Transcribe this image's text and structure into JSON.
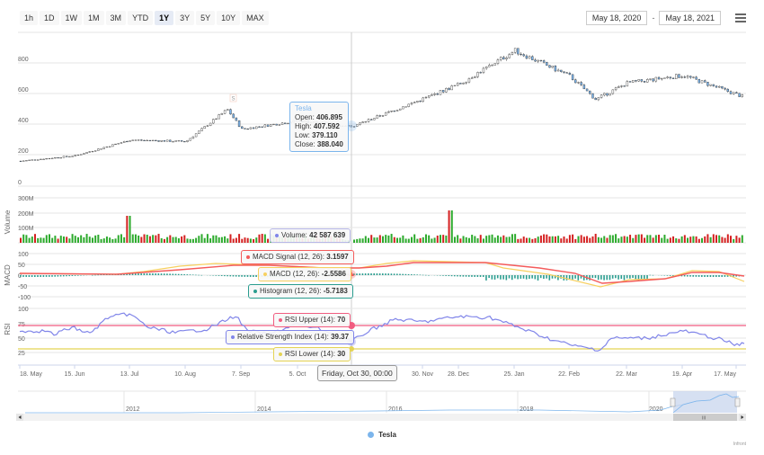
{
  "toolbar": {
    "range_buttons": [
      "1h",
      "1D",
      "1W",
      "1M",
      "3M",
      "YTD",
      "1Y",
      "3Y",
      "5Y",
      "10Y",
      "MAX"
    ],
    "active_range": "1Y",
    "date_from": "May 18, 2020",
    "date_separator": "-",
    "date_to": "May 18, 2021",
    "menu_icon": "hamburger-menu-icon"
  },
  "colors": {
    "up_volume": "#2caa2c",
    "down_volume": "#d42020",
    "candle_down_fill": "#7cb5ec",
    "macd_signal": "#f45b5b",
    "macd_line": "#f7d060",
    "histogram": "#2a9d8f",
    "rsi_line": "#8085e9",
    "rsi_upper": "#f15c80",
    "rsi_lower": "#e4d354",
    "navigator_fill": "#c8d5ee"
  },
  "chart_data": {
    "type": "candlestick",
    "title": "Tesla",
    "panes": [
      {
        "name": "price",
        "type": "candlestick",
        "y_ticks": [
          "0",
          "200",
          "400",
          "600",
          "800"
        ],
        "ylim": [
          0,
          900
        ],
        "approx_close_by_month": [
          {
            "date": "18. May",
            "close": 163
          },
          {
            "date": "15. Jun",
            "close": 198
          },
          {
            "date": "13. Jul",
            "close": 300
          },
          {
            "date": "10. Aug",
            "close": 290
          },
          {
            "date": "31. Aug",
            "close": 498
          },
          {
            "date": "7. Sep",
            "close": 370
          },
          {
            "date": "5. Oct",
            "close": 425
          },
          {
            "date": "30. Oct",
            "close": 388
          },
          {
            "date": "30. Nov",
            "close": 567
          },
          {
            "date": "28. Dec",
            "close": 663
          },
          {
            "date": "25. Jan",
            "close": 880
          },
          {
            "date": "22. Feb",
            "close": 714
          },
          {
            "date": "8. Mar",
            "close": 563
          },
          {
            "date": "22. Mar",
            "close": 670
          },
          {
            "date": "19. Apr",
            "close": 719
          },
          {
            "date": "17. May",
            "close": 576
          }
        ]
      },
      {
        "name": "volume",
        "title": "Volume",
        "type": "column",
        "y_ticks": [
          "0",
          "100M",
          "200M",
          "300M"
        ],
        "ylim": [
          0,
          300000000
        ]
      },
      {
        "name": "macd",
        "title": "MACD",
        "type": "line",
        "series": [
          "MACD Signal (12, 26)",
          "MACD (12, 26)",
          "Histogram (12, 26)"
        ],
        "y_ticks": [
          "-100",
          "-50",
          "0",
          "50",
          "100"
        ],
        "ylim": [
          -100,
          100
        ]
      },
      {
        "name": "rsi",
        "title": "RSI",
        "type": "line",
        "series": [
          "Relative Strength Index (14)",
          "RSI Upper (14)",
          "RSI Lower (14)"
        ],
        "y_ticks": [
          "25",
          "50",
          "75",
          "100"
        ],
        "ylim": [
          0,
          100
        ]
      }
    ],
    "x_ticks": [
      "18. May",
      "15. Jun",
      "13. Jul",
      "10. Aug",
      "7. Sep",
      "5. Oct",
      "30. Nov",
      "28. Dec",
      "25. Jan",
      "22. Feb",
      "22. Mar",
      "19. Apr",
      "17. May"
    ],
    "navigator_ticks": [
      "2012",
      "2014",
      "2016",
      "2018",
      "2020"
    ],
    "legend": [
      "Tesla"
    ],
    "hovered_point": {
      "date": "Friday, Oct 30, 00:00",
      "open": 406.895,
      "high": 407.592,
      "low": 379.11,
      "close": 388.04,
      "volume": "42 587 639",
      "macd_signal": 3.1597,
      "macd": -2.5586,
      "histogram": -5.7183,
      "rsi": 39.37,
      "rsi_upper": 70,
      "rsi_lower": 30
    }
  },
  "tooltips": {
    "price": {
      "series": "Tesla",
      "open_label": "Open: ",
      "open": "406.895",
      "high_label": "High: ",
      "high": "407.592",
      "low_label": "Low: ",
      "low": "379.110",
      "close_label": "Close: ",
      "close": "388.040"
    },
    "volume": {
      "label": "Volume: ",
      "value": "42 587 639"
    },
    "macd_signal": {
      "label": "MACD Signal (12, 26): ",
      "value": "3.1597"
    },
    "macd": {
      "label": "MACD (12, 26): ",
      "value": "-2.5586"
    },
    "histogram": {
      "label": "Histogram (12, 26): ",
      "value": "-5.7183"
    },
    "rsi_upper": {
      "label": "RSI Upper (14): ",
      "value": "70"
    },
    "rsi": {
      "label": "Relative Strength Index (14): ",
      "value": "39.37"
    },
    "rsi_lower": {
      "label": "RSI Lower (14): ",
      "value": "30"
    },
    "x_date": "Friday, Oct 30, 00:00"
  },
  "flag_marker": "S",
  "legend": {
    "label": "Tesla"
  },
  "credits": "Infront"
}
